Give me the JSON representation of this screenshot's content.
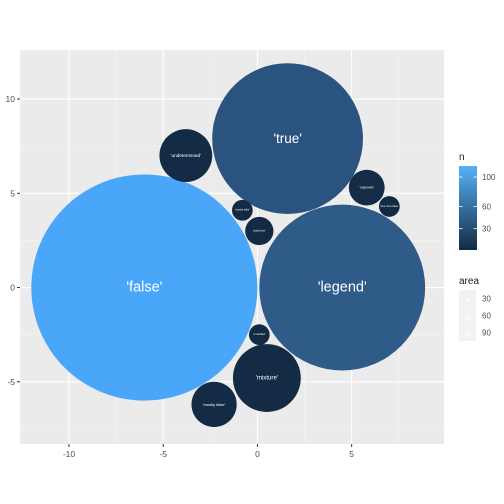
{
  "chart_data": {
    "type": "scatter",
    "xlim": [
      -12.6,
      9.9
    ],
    "ylim": [
      -8.3,
      12.6
    ],
    "x_ticks": [
      -10,
      -5,
      0,
      5
    ],
    "y_ticks": [
      -5,
      0,
      5,
      10
    ],
    "x_tick_labels": [
      "-10",
      "-5",
      "0",
      "5"
    ],
    "y_tick_labels": [
      "-5",
      "0",
      "5",
      "10"
    ],
    "grid": true,
    "legend_position": "right",
    "bubbles": [
      {
        "label": "'false'",
        "x": -6.0,
        "y": 0.0,
        "r": 6.0,
        "n": 115,
        "color": "#4aa6f8"
      },
      {
        "label": "'legend'",
        "x": 4.5,
        "y": 0.0,
        "r": 4.4,
        "n": 60,
        "color": "#2e5b87"
      },
      {
        "label": "'true'",
        "x": 1.6,
        "y": 7.9,
        "r": 4.0,
        "n": 50,
        "color": "#2b5380"
      },
      {
        "label": "'mixture'",
        "x": 0.5,
        "y": -4.8,
        "r": 1.8,
        "n": 12,
        "color": "#142b45"
      },
      {
        "label": "'undetermined'",
        "x": -3.8,
        "y": 7.0,
        "r": 1.4,
        "n": 8,
        "color": "#142b45"
      },
      {
        "label": "'mostly false'",
        "x": -2.3,
        "y": -6.2,
        "r": 1.2,
        "n": 6,
        "color": "#142b45"
      },
      {
        "label": "'unproven'",
        "x": 5.8,
        "y": 5.3,
        "r": 0.95,
        "n": 5,
        "color": "#152c47"
      },
      {
        "label": "'partly true'",
        "x": 0.1,
        "y": 3.0,
        "r": 0.75,
        "n": 3,
        "color": "#132a44"
      },
      {
        "label": "'mostly false'",
        "x": -0.8,
        "y": 4.1,
        "r": 0.55,
        "n": 2,
        "color": "#132a44"
      },
      {
        "label": "'true, then false'",
        "x": 7.0,
        "y": 4.3,
        "r": 0.55,
        "n": 2,
        "color": "#132a44"
      },
      {
        "label": "'unverified'",
        "x": 0.1,
        "y": -2.5,
        "r": 0.55,
        "n": 2,
        "color": "#132a44"
      }
    ],
    "legend_n": {
      "title": "n",
      "labels": [
        "100",
        "60",
        "30"
      ],
      "values": [
        100,
        60,
        30
      ],
      "range": [
        1,
        115
      ],
      "color_low": "#132b43",
      "color_high": "#56b1f7"
    },
    "legend_area": {
      "title": "area",
      "labels": [
        "30",
        "60",
        "90"
      ],
      "key_glyph": "a"
    }
  }
}
